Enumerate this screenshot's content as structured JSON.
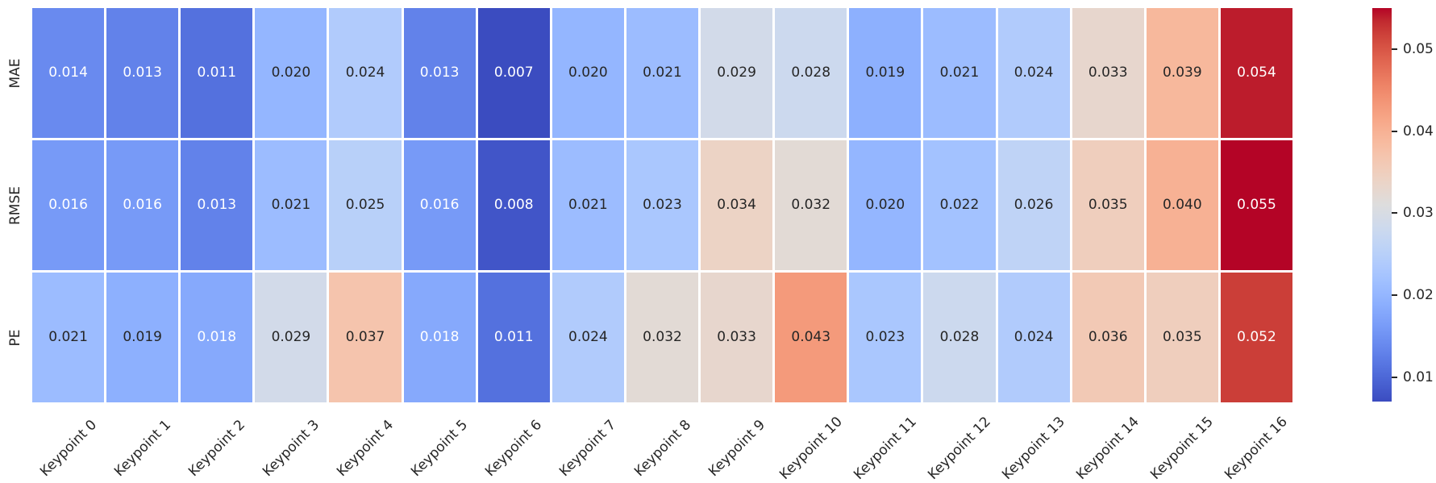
{
  "chart_data": {
    "type": "heatmap",
    "title": "",
    "xlabel": "",
    "ylabel": "",
    "rows": [
      "MAE",
      "RMSE",
      "PE"
    ],
    "columns": [
      "Keypoint 0",
      "Keypoint 1",
      "Keypoint 2",
      "Keypoint 3",
      "Keypoint 4",
      "Keypoint 5",
      "Keypoint 6",
      "Keypoint 7",
      "Keypoint 8",
      "Keypoint 9",
      "Keypoint 10",
      "Keypoint 11",
      "Keypoint 12",
      "Keypoint 13",
      "Keypoint 14",
      "Keypoint 15",
      "Keypoint 16"
    ],
    "series": [
      {
        "name": "MAE",
        "values": [
          0.014,
          0.013,
          0.011,
          0.02,
          0.024,
          0.013,
          0.007,
          0.02,
          0.021,
          0.029,
          0.028,
          0.019,
          0.021,
          0.024,
          0.033,
          0.039,
          0.054
        ]
      },
      {
        "name": "RMSE",
        "values": [
          0.016,
          0.016,
          0.013,
          0.021,
          0.025,
          0.016,
          0.008,
          0.021,
          0.023,
          0.034,
          0.032,
          0.02,
          0.022,
          0.026,
          0.035,
          0.04,
          0.055
        ]
      },
      {
        "name": "PE",
        "values": [
          0.021,
          0.019,
          0.018,
          0.029,
          0.037,
          0.018,
          0.011,
          0.024,
          0.032,
          0.033,
          0.043,
          0.023,
          0.028,
          0.024,
          0.036,
          0.035,
          0.052
        ]
      }
    ],
    "annotation_decimals": 3,
    "vmin": 0.007,
    "vmax": 0.055,
    "grid": false,
    "legend_position": "right-colorbar",
    "colorbar": {
      "tick_values": [
        0.05,
        0.04,
        0.03,
        0.02,
        0.01
      ],
      "tick_labels": [
        "0.05",
        "0.04",
        "0.03",
        "0.02",
        "0.01"
      ]
    },
    "colormap": "coolwarm",
    "colors": {
      "background": "#FFFFFF",
      "cell_gap": "#FFFFFF",
      "annotation_dark": "#262626",
      "annotation_light": "#FFFFFF",
      "tick_label": "#262626",
      "colormap_stops": [
        "#3B4CC0",
        "#445ACC",
        "#4D68D7",
        "#5775E1",
        "#6282EA",
        "#6C8EF1",
        "#779AF7",
        "#82A5FB",
        "#8DB0FE",
        "#98B9FF",
        "#A3C2FF",
        "#AEC9FD",
        "#B8D0F9",
        "#C2D5F4",
        "#CCD9EE",
        "#D5DBE6",
        "#DDDDDD",
        "#E5D8D1",
        "#ECD3C5",
        "#F1CCB9",
        "#F5C4AD",
        "#F7BBA0",
        "#F7B194",
        "#F7A687",
        "#F49A7B",
        "#F18D6F",
        "#EC7F63",
        "#E57058",
        "#DE604D",
        "#D55042",
        "#CB3E38",
        "#C0282F",
        "#B40426"
      ]
    }
  }
}
